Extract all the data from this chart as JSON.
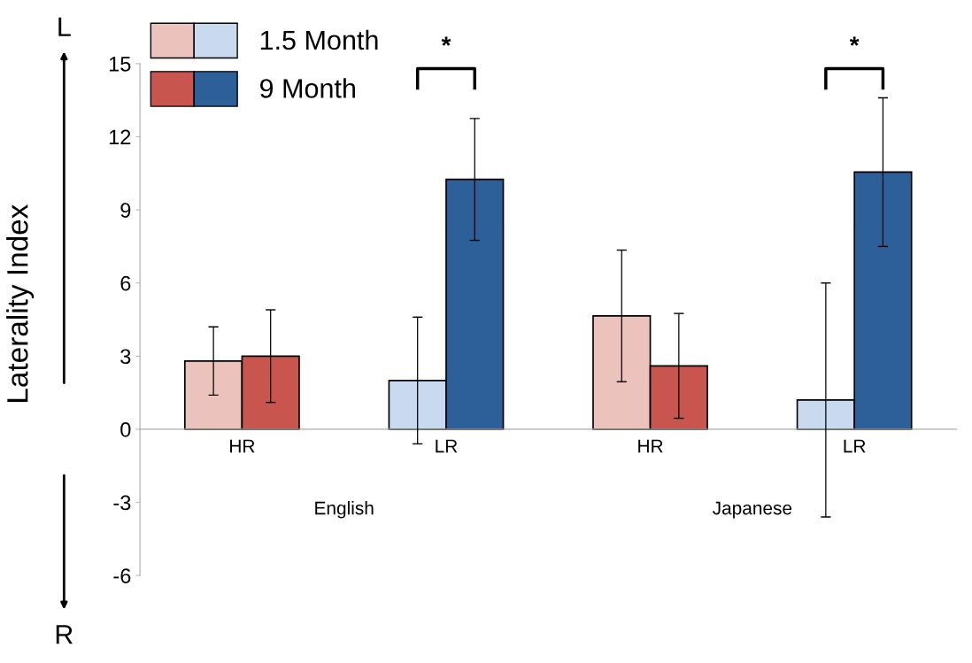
{
  "chart_data": {
    "type": "bar",
    "ylabel": "Laterality Index",
    "categories": [
      "HR",
      "LR",
      "HR",
      "LR"
    ],
    "series": [
      {
        "name": "1.5 Month",
        "colors": [
          "#ecc2bd",
          "#c9daf0",
          "#ecc2bd",
          "#c9daf0"
        ],
        "values": [
          2.8,
          2.0,
          4.65,
          1.2
        ],
        "errors": [
          1.4,
          2.6,
          2.7,
          4.8
        ]
      },
      {
        "name": "9 Month",
        "colors": [
          "#c8564f",
          "#2d5f98",
          "#c8564f",
          "#2d5f98"
        ],
        "values": [
          3.0,
          10.25,
          2.6,
          10.55
        ],
        "errors": [
          1.9,
          2.5,
          2.15,
          3.05
        ]
      }
    ],
    "ylim": [
      -6,
      15
    ],
    "yticks": [
      -6,
      -3,
      0,
      3,
      6,
      9,
      12,
      15
    ],
    "grid": false,
    "legend": "top left",
    "annotations": [
      "*",
      "*",
      "L",
      "R",
      "English",
      "Japanese"
    ]
  }
}
